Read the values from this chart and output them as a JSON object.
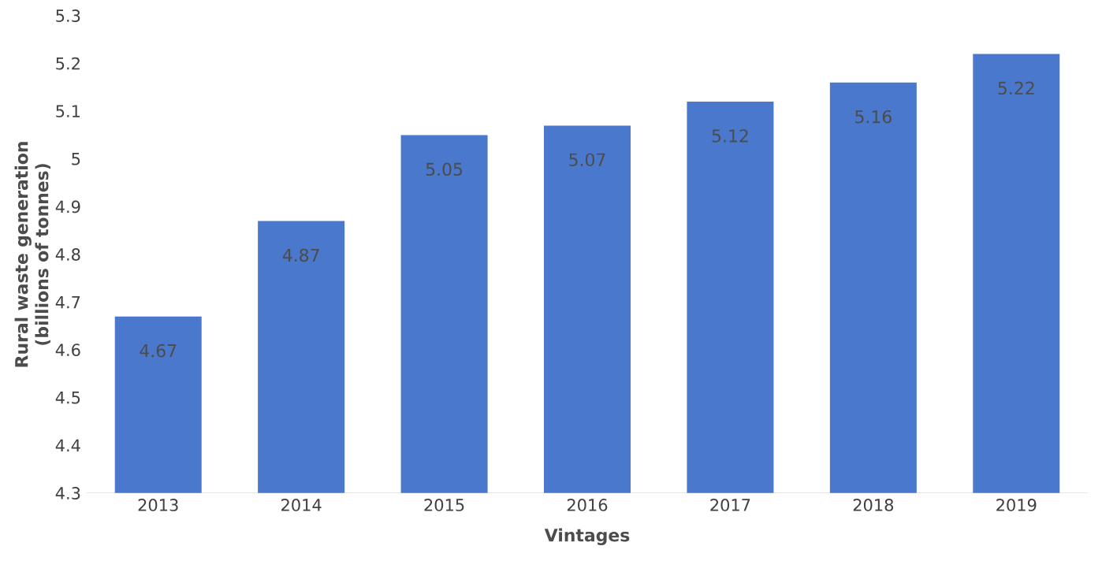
{
  "chart_data": {
    "type": "bar",
    "xlabel": "Vintages",
    "ylabel": "Rural waste generation (billions of tonnes)",
    "categories": [
      "2013",
      "2014",
      "2015",
      "2016",
      "2017",
      "2018",
      "2019"
    ],
    "values": [
      4.67,
      4.87,
      5.05,
      5.07,
      5.12,
      5.16,
      5.22
    ],
    "color": "#4a78cc",
    "ylim": [
      4.3,
      5.3
    ],
    "yticks": [
      4.3,
      4.4,
      4.5,
      4.6,
      4.7,
      4.8,
      4.9,
      5,
      5.1,
      5.2,
      5.3
    ],
    "data_labels": true
  }
}
